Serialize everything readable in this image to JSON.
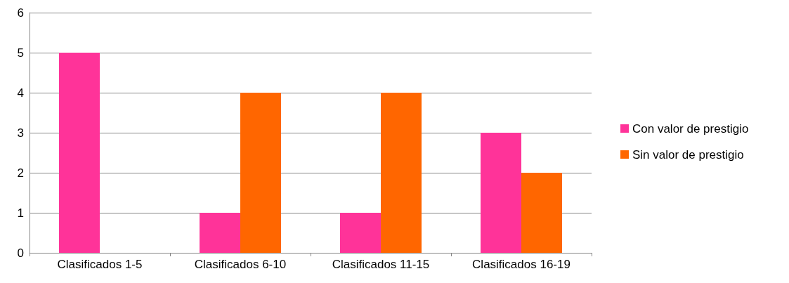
{
  "chart_data": {
    "type": "bar",
    "categories": [
      "Clasificados 1-5",
      "Clasificados 6-10",
      "Clasificados 11-15",
      "Clasificados 16-19"
    ],
    "series": [
      {
        "name": "Con valor de prestigio",
        "color": "#ff3399",
        "values": [
          5,
          1,
          1,
          3
        ]
      },
      {
        "name": "Sin valor de prestigio",
        "color": "#ff6600",
        "values": [
          0,
          4,
          4,
          2
        ]
      }
    ],
    "ylim": [
      0,
      6
    ],
    "yticks": [
      0,
      1,
      2,
      3,
      4,
      5,
      6
    ],
    "grid": "y",
    "legend": "right"
  }
}
